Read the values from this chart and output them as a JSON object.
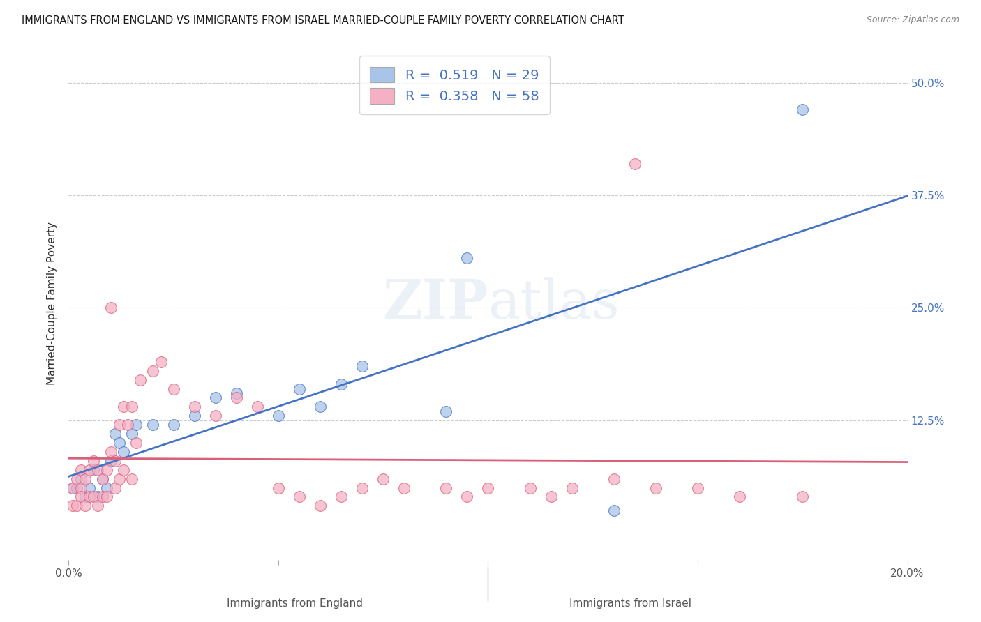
{
  "title": "IMMIGRANTS FROM ENGLAND VS IMMIGRANTS FROM ISRAEL MARRIED-COUPLE FAMILY POVERTY CORRELATION CHART",
  "source": "Source: ZipAtlas.com",
  "xlabel_left": "Immigrants from England",
  "xlabel_right": "Immigrants from Israel",
  "ylabel": "Married-Couple Family Poverty",
  "xlim": [
    0.0,
    0.2
  ],
  "ylim": [
    -0.03,
    0.54
  ],
  "england_R": 0.519,
  "england_N": 29,
  "israel_R": 0.358,
  "israel_N": 58,
  "england_color": "#a8c4e8",
  "israel_color": "#f5b0c5",
  "england_line_color": "#4472c4",
  "israel_line_color": "#d9607a",
  "watermark": "ZIPatlas",
  "england_x": [
    0.001,
    0.002,
    0.003,
    0.004,
    0.005,
    0.006,
    0.007,
    0.008,
    0.009,
    0.01,
    0.011,
    0.012,
    0.013,
    0.015,
    0.016,
    0.02,
    0.025,
    0.03,
    0.035,
    0.04,
    0.05,
    0.055,
    0.06,
    0.065,
    0.07,
    0.09,
    0.095,
    0.13,
    0.175
  ],
  "england_y": [
    0.05,
    0.05,
    0.06,
    0.04,
    0.05,
    0.07,
    0.04,
    0.06,
    0.05,
    0.08,
    0.11,
    0.1,
    0.09,
    0.11,
    0.12,
    0.12,
    0.12,
    0.13,
    0.15,
    0.155,
    0.13,
    0.16,
    0.14,
    0.165,
    0.185,
    0.135,
    0.305,
    0.025,
    0.47
  ],
  "israel_x": [
    0.001,
    0.001,
    0.002,
    0.002,
    0.003,
    0.003,
    0.003,
    0.004,
    0.004,
    0.005,
    0.005,
    0.006,
    0.006,
    0.007,
    0.007,
    0.008,
    0.008,
    0.009,
    0.009,
    0.01,
    0.01,
    0.011,
    0.011,
    0.012,
    0.012,
    0.013,
    0.013,
    0.014,
    0.015,
    0.015,
    0.016,
    0.017,
    0.02,
    0.022,
    0.025,
    0.03,
    0.035,
    0.04,
    0.045,
    0.05,
    0.055,
    0.06,
    0.065,
    0.07,
    0.075,
    0.08,
    0.09,
    0.095,
    0.1,
    0.11,
    0.115,
    0.12,
    0.13,
    0.135,
    0.14,
    0.15,
    0.16,
    0.175
  ],
  "israel_y": [
    0.05,
    0.03,
    0.06,
    0.03,
    0.05,
    0.07,
    0.04,
    0.06,
    0.03,
    0.07,
    0.04,
    0.08,
    0.04,
    0.07,
    0.03,
    0.06,
    0.04,
    0.07,
    0.04,
    0.09,
    0.25,
    0.08,
    0.05,
    0.12,
    0.06,
    0.14,
    0.07,
    0.12,
    0.14,
    0.06,
    0.1,
    0.17,
    0.18,
    0.19,
    0.16,
    0.14,
    0.13,
    0.15,
    0.14,
    0.05,
    0.04,
    0.03,
    0.04,
    0.05,
    0.06,
    0.05,
    0.05,
    0.04,
    0.05,
    0.05,
    0.04,
    0.05,
    0.06,
    0.41,
    0.05,
    0.05,
    0.04,
    0.04
  ]
}
